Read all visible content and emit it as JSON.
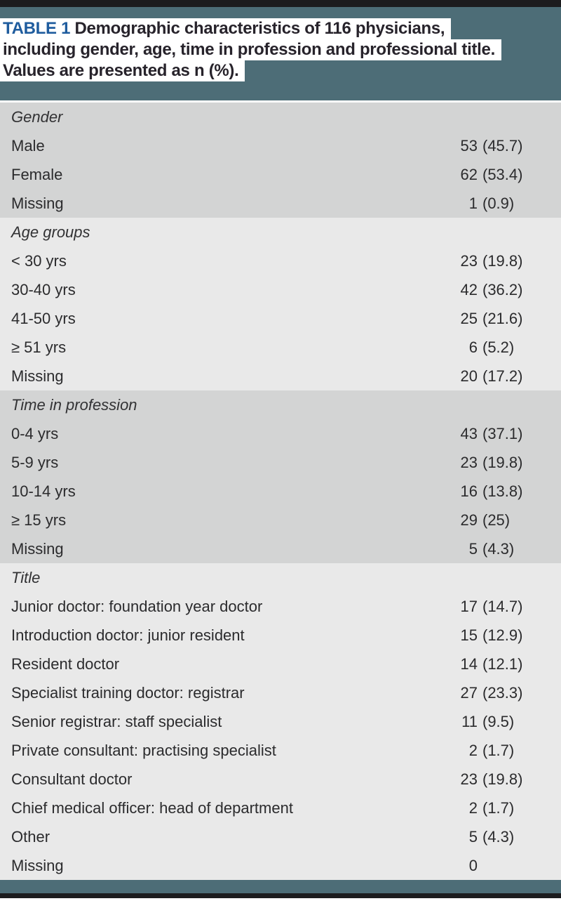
{
  "caption": {
    "table_label": "TABLE 1",
    "line1_rest": " Demographic characteristics of 116 physicians,",
    "line2": "including gender, age, time in profession and professional title.",
    "line3": "Values are presented as n (%)."
  },
  "colors": {
    "header_teal": "#4d6d77",
    "table_label_blue": "#1f5c9e",
    "caption_text": "#27232b",
    "section_dark": "#d3d4d4",
    "section_light": "#e9e9e9",
    "edge_bar_black": "#1c1c1e"
  },
  "table": {
    "value_format": "n (%)",
    "sections": [
      {
        "header": "Gender",
        "shade": "dark",
        "rows": [
          {
            "label": "Male",
            "n": "53",
            "pct": "45.7"
          },
          {
            "label": "Female",
            "n": "62",
            "pct": "53.4"
          },
          {
            "label": "Missing",
            "n": "1",
            "pct": "0.9"
          }
        ]
      },
      {
        "header": "Age groups",
        "shade": "light",
        "rows": [
          {
            "label": "< 30 yrs",
            "n": "23",
            "pct": "19.8"
          },
          {
            "label": "30-40 yrs",
            "n": "42",
            "pct": "36.2"
          },
          {
            "label": "41-50 yrs",
            "n": "25",
            "pct": "21.6"
          },
          {
            "label": "≥ 51 yrs",
            "n": "6",
            "pct": "5.2"
          },
          {
            "label": "Missing",
            "n": "20",
            "pct": "17.2"
          }
        ]
      },
      {
        "header": "Time in profession",
        "shade": "dark",
        "rows": [
          {
            "label": "0-4 yrs",
            "n": "43",
            "pct": "37.1"
          },
          {
            "label": "5-9 yrs",
            "n": "23",
            "pct": "19.8"
          },
          {
            "label": "10-14 yrs",
            "n": "16",
            "pct": "13.8"
          },
          {
            "label": "≥ 15 yrs",
            "n": "29",
            "pct": "25"
          },
          {
            "label": "Missing",
            "n": "5",
            "pct": "4.3"
          }
        ]
      },
      {
        "header": "Title",
        "shade": "light",
        "rows": [
          {
            "label": "Junior doctor: foundation year doctor",
            "n": "17",
            "pct": "14.7"
          },
          {
            "label": "Introduction doctor: junior resident",
            "n": "15",
            "pct": "12.9"
          },
          {
            "label": "Resident doctor",
            "n": "14",
            "pct": "12.1"
          },
          {
            "label": "Specialist training doctor: registrar",
            "n": "27",
            "pct": "23.3"
          },
          {
            "label": "Senior registrar: staff specialist",
            "n": "11",
            "pct": "9.5"
          },
          {
            "label": "Private consultant: practising specialist",
            "n": "2",
            "pct": "1.7"
          },
          {
            "label": "Consultant doctor",
            "n": "23",
            "pct": "19.8"
          },
          {
            "label": "Chief medical officer: head of department",
            "n": "2",
            "pct": "1.7"
          },
          {
            "label": "Other",
            "n": "5",
            "pct": "4.3"
          },
          {
            "label": "Missing",
            "n": "0",
            "pct": null
          }
        ]
      }
    ]
  }
}
